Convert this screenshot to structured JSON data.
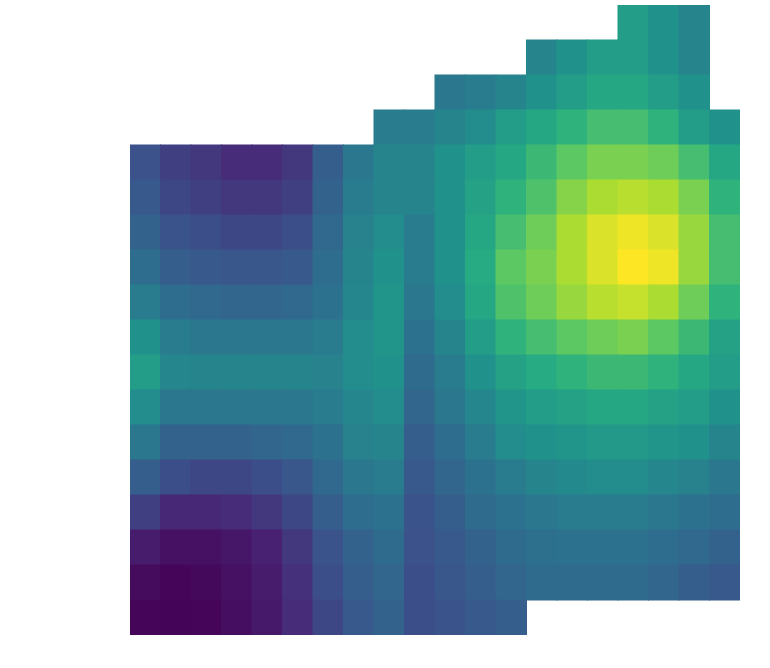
{
  "chart_data": {
    "type": "surface",
    "grid": false,
    "tick_labels": false,
    "zlim": [
      0,
      1
    ],
    "z": [
      [
        null,
        null,
        null,
        null,
        null,
        null,
        null,
        null,
        null,
        null,
        null,
        null,
        null,
        null,
        null,
        null,
        0.55,
        0.5,
        0.45,
        null
      ],
      [
        null,
        null,
        null,
        null,
        null,
        null,
        null,
        null,
        null,
        null,
        null,
        null,
        null,
        0.45,
        0.5,
        0.55,
        0.55,
        0.5,
        0.45,
        null
      ],
      [
        null,
        null,
        null,
        null,
        null,
        null,
        null,
        null,
        null,
        null,
        0.4,
        0.42,
        0.45,
        0.5,
        0.55,
        0.6,
        0.6,
        0.55,
        0.5,
        null
      ],
      [
        null,
        null,
        null,
        null,
        null,
        null,
        null,
        null,
        0.42,
        0.42,
        0.45,
        0.48,
        0.55,
        0.6,
        0.65,
        0.7,
        0.7,
        0.65,
        0.55,
        0.5
      ],
      [
        0.25,
        0.2,
        0.18,
        0.15,
        0.15,
        0.18,
        0.3,
        0.4,
        0.45,
        0.45,
        0.5,
        0.55,
        0.6,
        0.68,
        0.75,
        0.8,
        0.8,
        0.78,
        0.7,
        0.6
      ],
      [
        0.28,
        0.22,
        0.2,
        0.18,
        0.18,
        0.2,
        0.32,
        0.42,
        0.45,
        0.45,
        0.5,
        0.58,
        0.65,
        0.72,
        0.82,
        0.88,
        0.9,
        0.88,
        0.8,
        0.65
      ],
      [
        0.32,
        0.26,
        0.24,
        0.22,
        0.22,
        0.24,
        0.34,
        0.44,
        0.48,
        0.42,
        0.5,
        0.6,
        0.7,
        0.78,
        0.88,
        0.95,
        0.98,
        0.95,
        0.85,
        0.7
      ],
      [
        0.36,
        0.3,
        0.28,
        0.27,
        0.27,
        0.28,
        0.36,
        0.45,
        0.5,
        0.42,
        0.5,
        0.62,
        0.75,
        0.8,
        0.88,
        0.95,
        1,
        0.98,
        0.85,
        0.7
      ],
      [
        0.42,
        0.36,
        0.34,
        0.33,
        0.33,
        0.34,
        0.38,
        0.46,
        0.52,
        0.4,
        0.48,
        0.6,
        0.72,
        0.78,
        0.85,
        0.9,
        0.92,
        0.88,
        0.78,
        0.65
      ],
      [
        0.5,
        0.42,
        0.4,
        0.4,
        0.4,
        0.4,
        0.42,
        0.48,
        0.52,
        0.38,
        0.45,
        0.55,
        0.65,
        0.7,
        0.75,
        0.78,
        0.8,
        0.75,
        0.68,
        0.58
      ],
      [
        0.55,
        0.46,
        0.45,
        0.45,
        0.45,
        0.45,
        0.44,
        0.48,
        0.5,
        0.35,
        0.42,
        0.5,
        0.58,
        0.62,
        0.65,
        0.68,
        0.68,
        0.65,
        0.6,
        0.55
      ],
      [
        0.48,
        0.4,
        0.4,
        0.4,
        0.4,
        0.4,
        0.42,
        0.46,
        0.48,
        0.33,
        0.4,
        0.46,
        0.52,
        0.55,
        0.58,
        0.6,
        0.6,
        0.58,
        0.55,
        0.5
      ],
      [
        0.4,
        0.32,
        0.32,
        0.32,
        0.33,
        0.34,
        0.38,
        0.44,
        0.45,
        0.3,
        0.36,
        0.42,
        0.48,
        0.5,
        0.52,
        0.54,
        0.54,
        0.52,
        0.5,
        0.45
      ],
      [
        0.3,
        0.24,
        0.22,
        0.22,
        0.24,
        0.27,
        0.34,
        0.4,
        0.42,
        0.28,
        0.33,
        0.38,
        0.42,
        0.45,
        0.47,
        0.48,
        0.48,
        0.46,
        0.44,
        0.4
      ],
      [
        0.2,
        0.14,
        0.14,
        0.15,
        0.18,
        0.22,
        0.3,
        0.36,
        0.38,
        0.26,
        0.3,
        0.35,
        0.38,
        0.4,
        0.42,
        0.42,
        0.42,
        0.4,
        0.38,
        0.36
      ],
      [
        0.1,
        0.06,
        0.06,
        0.08,
        0.12,
        0.18,
        0.26,
        0.32,
        0.35,
        0.25,
        0.28,
        0.32,
        0.35,
        0.37,
        0.38,
        0.38,
        0.38,
        0.36,
        0.34,
        0.32
      ],
      [
        0.04,
        0.02,
        0.03,
        0.06,
        0.1,
        0.16,
        0.24,
        0.3,
        0.33,
        0.24,
        0.27,
        0.3,
        0.33,
        0.35,
        0.35,
        0.35,
        0.35,
        0.33,
        0.3,
        0.28
      ],
      [
        0.02,
        0.01,
        0.02,
        0.05,
        0.09,
        0.15,
        0.22,
        0.28,
        0.32,
        0.24,
        0.26,
        0.28,
        0.3,
        null,
        null,
        null,
        null,
        null,
        null,
        null
      ]
    ]
  }
}
